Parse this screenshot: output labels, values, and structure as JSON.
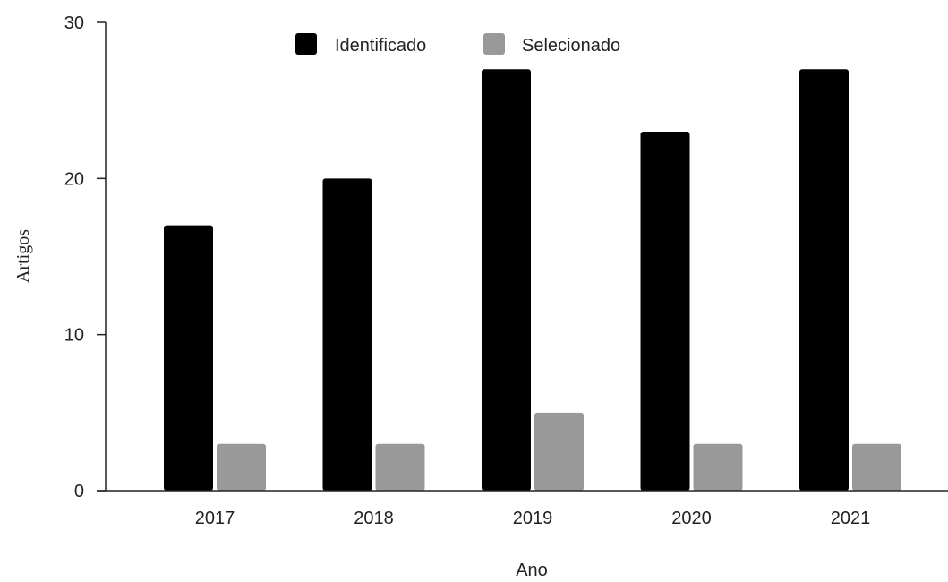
{
  "chart_data": {
    "type": "bar",
    "categories": [
      "2017",
      "2018",
      "2019",
      "2020",
      "2021"
    ],
    "series": [
      {
        "name": "Identificado",
        "values": [
          17,
          20,
          27,
          23,
          27
        ],
        "color": "#000000"
      },
      {
        "name": "Selecionado",
        "values": [
          3,
          3,
          5,
          3,
          3
        ],
        "color": "#999999"
      }
    ],
    "xlabel": "Ano",
    "ylabel": "Artigos",
    "ylim": [
      0,
      30
    ],
    "yticks": [
      0,
      10,
      20,
      30
    ],
    "grid": false,
    "legend_position": "top-center"
  }
}
